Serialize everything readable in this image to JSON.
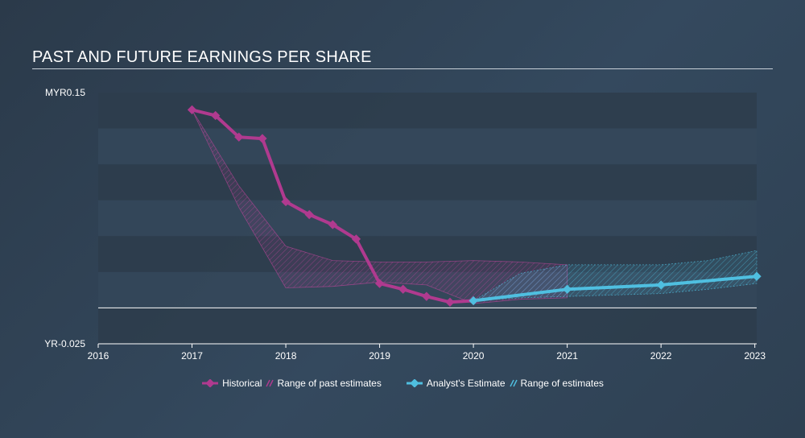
{
  "title": "PAST AND FUTURE EARNINGS PER SHARE",
  "colors": {
    "historical": "#b03a8f",
    "estimate": "#4fbfe0",
    "band_dark": "#2e3d4c",
    "band_light": "#34475a"
  },
  "chart_data": {
    "type": "line",
    "title": "PAST AND FUTURE EARNINGS PER SHARE",
    "xlim": [
      2016,
      2023.02
    ],
    "ylim": [
      -0.025,
      0.15
    ],
    "y_tick_labels": [
      "MYR0.15",
      "YR-0.025"
    ],
    "y_tick_values": [
      0.15,
      -0.025
    ],
    "zero_line": 0,
    "x_ticks": [
      "2016",
      "2017",
      "2018",
      "2019",
      "2020",
      "2021",
      "2022",
      "2023"
    ],
    "series": [
      {
        "name": "Historical",
        "x": [
          2017.0,
          2017.25,
          2017.5,
          2017.75,
          2018.0,
          2018.25,
          2018.5,
          2018.75,
          2019.0,
          2019.25,
          2019.5,
          2019.75,
          2020.0
        ],
        "values": [
          0.138,
          0.134,
          0.119,
          0.118,
          0.074,
          0.065,
          0.058,
          0.048,
          0.017,
          0.013,
          0.008,
          0.004,
          0.005
        ]
      },
      {
        "name": "Analyst's Estimate",
        "x": [
          2020.0,
          2021.0,
          2022.0,
          2023.02
        ],
        "values": [
          0.005,
          0.013,
          0.016,
          0.022
        ]
      }
    ],
    "past_range": {
      "name": "Range of past estimates",
      "x": [
        2017.0,
        2017.5,
        2018.0,
        2018.5,
        2019.0,
        2019.5,
        2020.0,
        2020.5,
        2021.0
      ],
      "upper": [
        0.138,
        0.085,
        0.043,
        0.033,
        0.032,
        0.032,
        0.033,
        0.032,
        0.03
      ],
      "lower": [
        0.138,
        0.07,
        0.014,
        0.015,
        0.018,
        0.016,
        0.003,
        0.006,
        0.007
      ]
    },
    "future_range": {
      "name": "Range of estimates",
      "x": [
        2020.0,
        2020.5,
        2021.0,
        2021.5,
        2022.0,
        2022.5,
        2023.02
      ],
      "upper": [
        0.005,
        0.024,
        0.03,
        0.03,
        0.03,
        0.033,
        0.04
      ],
      "lower": [
        0.005,
        0.007,
        0.008,
        0.009,
        0.01,
        0.013,
        0.017
      ]
    }
  },
  "legend": {
    "historical": "Historical",
    "past_range": "Range of past estimates",
    "estimate": "Analyst's Estimate",
    "future_range": "Range of estimates"
  }
}
